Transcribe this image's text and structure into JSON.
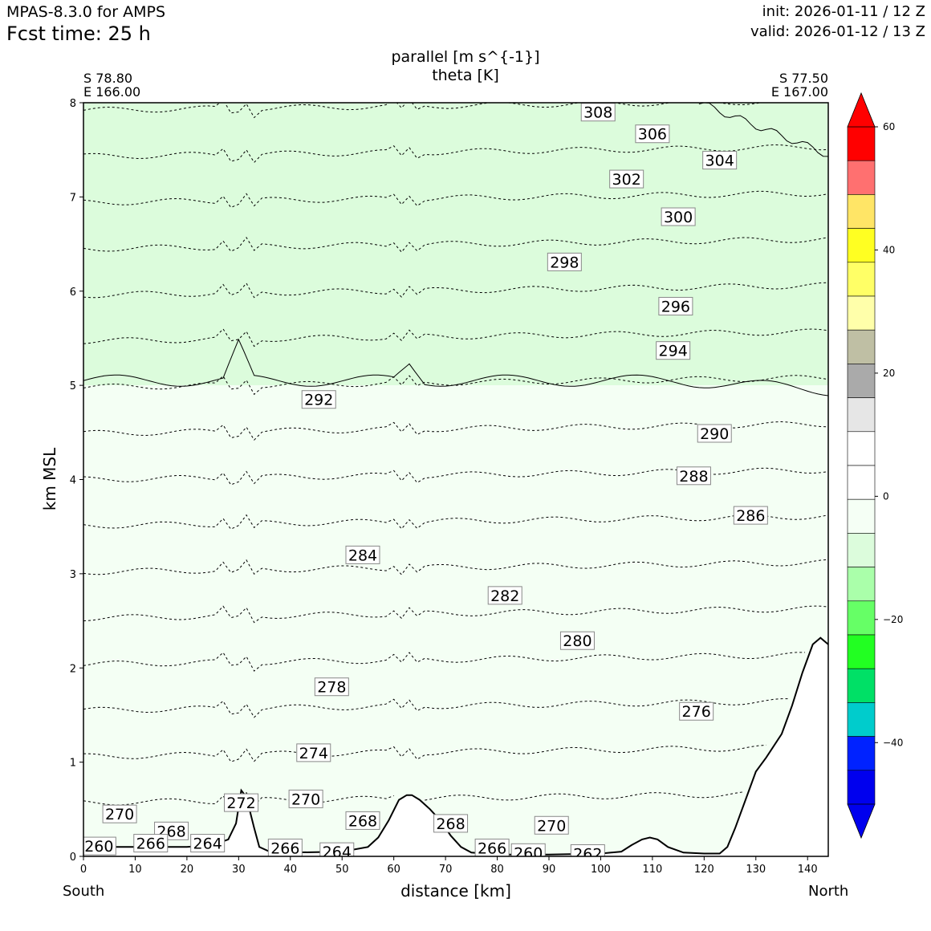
{
  "header": {
    "model": "MPAS-8.3.0 for AMPS",
    "fcst_time": "Fcst time:   25 h",
    "init": "init: 2026-01-11 / 12 Z",
    "valid": "valid: 2026-01-12 / 13 Z"
  },
  "location": {
    "left_lat": "S 78.80",
    "left_lon": "E 166.00",
    "right_lat": "S 77.50",
    "right_lon": "E 167.00"
  },
  "direction": {
    "left": "South",
    "right": "North"
  },
  "chart_data": {
    "type": "cross-section contour",
    "title": "parallel [m s^{-1}]",
    "subtitle": "theta [K]",
    "xlabel": "distance [km]",
    "ylabel": "km MSL",
    "xlim": [
      0,
      144
    ],
    "ylim": [
      0,
      8
    ],
    "x_ticks": [
      0,
      10,
      20,
      30,
      40,
      50,
      60,
      70,
      80,
      90,
      100,
      110,
      120,
      130,
      140
    ],
    "y_ticks": [
      0,
      1,
      2,
      3,
      4,
      5,
      6,
      7,
      8
    ],
    "fill_regions": [
      {
        "name": "parallel -10..-5",
        "color": "#dcfcdc",
        "range": [
          -10,
          -5
        ],
        "bottom_km": 5.0,
        "top_km": 8
      },
      {
        "name": "parallel -5..0",
        "color": "#f4fff4",
        "range": [
          -5,
          0
        ],
        "bottom_km": 0,
        "top_km": 5.0
      }
    ],
    "colorbar": {
      "tick_labels": [
        "60",
        "40",
        "20",
        "0",
        "−20",
        "−40"
      ],
      "tick_values": [
        60,
        40,
        20,
        0,
        -20,
        -40
      ],
      "colors_top_to_bottom": [
        "#ff0000",
        "#ff7070",
        "#ffe566",
        "#ffff22",
        "#ffff66",
        "#ffffaa",
        "#bfbfa4",
        "#aaaaaa",
        "#e6e6e6",
        "#ffffff",
        "#ffffff",
        "#f5fff5",
        "#dcfcdc",
        "#aaffaa",
        "#66ff66",
        "#22ff22",
        "#00e066",
        "#00cccc",
        "#0022ff",
        "#0000ee"
      ],
      "over_color": "#ff0000",
      "under_color": "#0000ee"
    },
    "theta_labels": [
      {
        "text": "308",
        "x": 99.5,
        "y": 7.9
      },
      {
        "text": "306",
        "x": 110,
        "y": 7.67
      },
      {
        "text": "304",
        "x": 123,
        "y": 7.39
      },
      {
        "text": "302",
        "x": 105,
        "y": 7.19
      },
      {
        "text": "300",
        "x": 115,
        "y": 6.79
      },
      {
        "text": "298",
        "x": 93,
        "y": 6.31
      },
      {
        "text": "296",
        "x": 114.5,
        "y": 5.84
      },
      {
        "text": "294",
        "x": 114,
        "y": 5.37
      },
      {
        "text": "292",
        "x": 45.5,
        "y": 4.85
      },
      {
        "text": "290",
        "x": 122,
        "y": 4.49
      },
      {
        "text": "288",
        "x": 118,
        "y": 4.04
      },
      {
        "text": "286",
        "x": 129,
        "y": 3.62
      },
      {
        "text": "284",
        "x": 54,
        "y": 3.2
      },
      {
        "text": "282",
        "x": 81.5,
        "y": 2.77
      },
      {
        "text": "280",
        "x": 95.5,
        "y": 2.29
      },
      {
        "text": "278",
        "x": 48,
        "y": 1.8
      },
      {
        "text": "276",
        "x": 118.5,
        "y": 1.54
      },
      {
        "text": "274",
        "x": 44.5,
        "y": 1.1
      },
      {
        "text": "272",
        "x": 30.5,
        "y": 0.57
      },
      {
        "text": "270",
        "x": 7,
        "y": 0.45
      },
      {
        "text": "270",
        "x": 43,
        "y": 0.61
      },
      {
        "text": "270",
        "x": 90.5,
        "y": 0.33
      },
      {
        "text": "268",
        "x": 17,
        "y": 0.27
      },
      {
        "text": "268",
        "x": 54,
        "y": 0.38
      },
      {
        "text": "268",
        "x": 71,
        "y": 0.35
      },
      {
        "text": "266",
        "x": 13,
        "y": 0.14
      },
      {
        "text": "266",
        "x": 39,
        "y": 0.09
      },
      {
        "text": "266",
        "x": 79,
        "y": 0.09
      },
      {
        "text": "264",
        "x": 24,
        "y": 0.14
      },
      {
        "text": "264",
        "x": 49,
        "y": 0.05
      },
      {
        "text": "262",
        "x": 97.5,
        "y": 0.03
      },
      {
        "text": "260",
        "x": 3,
        "y": 0.11
      },
      {
        "text": "260",
        "x": 86,
        "y": 0.04
      }
    ],
    "terrain_km": {
      "x": [
        0,
        10,
        20,
        25,
        28,
        29.5,
        30.5,
        31.5,
        33,
        34,
        36,
        40,
        50,
        55,
        57,
        59,
        61,
        62.5,
        63.5,
        65,
        67,
        69,
        71,
        73,
        75,
        80,
        90,
        100,
        104,
        106,
        108,
        109.5,
        111,
        113,
        116,
        120,
        123,
        124.5,
        126,
        128,
        130,
        132,
        135,
        137,
        139,
        141,
        142.5,
        144
      ],
      "y": [
        0.1,
        0.1,
        0.1,
        0.12,
        0.18,
        0.35,
        0.7,
        0.63,
        0.3,
        0.1,
        0.05,
        0.04,
        0.05,
        0.1,
        0.2,
        0.38,
        0.6,
        0.65,
        0.65,
        0.6,
        0.5,
        0.38,
        0.22,
        0.1,
        0.04,
        0.02,
        0.02,
        0.03,
        0.05,
        0.12,
        0.18,
        0.2,
        0.18,
        0.1,
        0.04,
        0.03,
        0.03,
        0.1,
        0.3,
        0.6,
        0.9,
        1.05,
        1.3,
        1.6,
        1.95,
        2.25,
        2.32,
        2.25
      ]
    }
  }
}
